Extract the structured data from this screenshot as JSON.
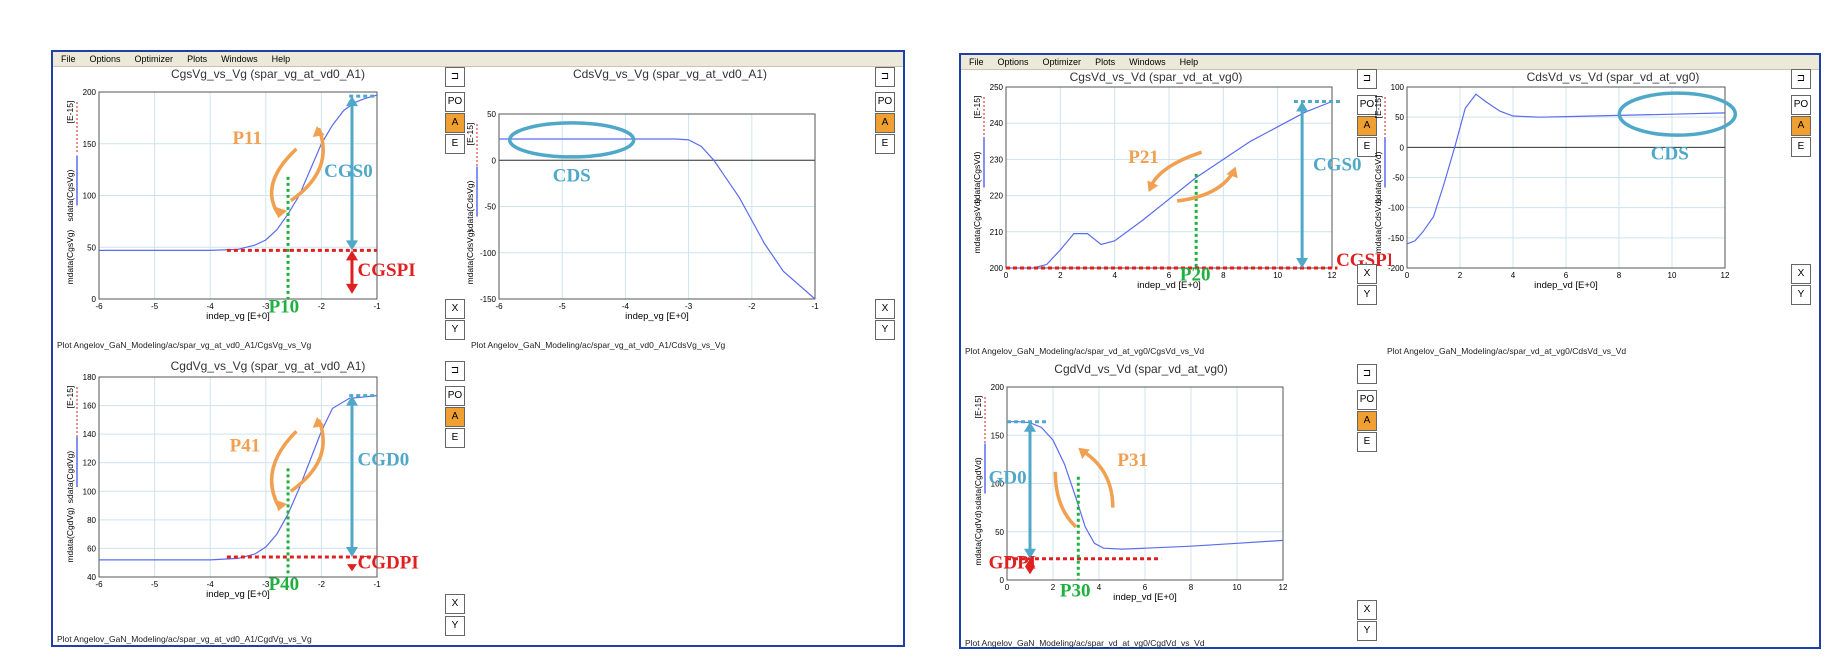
{
  "menu": [
    "File",
    "Options",
    "Optimizer",
    "Plots",
    "Windows",
    "Help"
  ],
  "buttons": {
    "po": "PO",
    "a": "A",
    "e": "E",
    "x": "X",
    "y": "Y"
  },
  "ylabels": {
    "cgsvg": [
      "mdata(CgsVg)",
      "sdata(CgsVg)",
      "[E-15]"
    ],
    "cdsvg": [
      "mdata(CdsVg)",
      "sdata(CdsVg)",
      "[E-15]"
    ],
    "cgdvg": [
      "mdata(CgdVg)",
      "sdata(CgdVg)",
      "[E-15]"
    ],
    "cgsvd": [
      "mdata(CgsVd)",
      "sdata(CgsVd)",
      "[E-15]"
    ],
    "cdsvd": [
      "mdata(CdsVd)",
      "sdata(CdsVd)",
      "[E-15]"
    ],
    "cgdvd": [
      "mdata(CgdVd)",
      "sdata(CgdVd)",
      "[E-15]"
    ]
  },
  "colors": {
    "curve": "#5a6cf0",
    "annot_orange": "#f0a050",
    "annot_blue": "#50a8c8",
    "annot_red": "#e02020",
    "annot_green": "#20b040",
    "frame": "#2040a8"
  },
  "chart_data": [
    {
      "id": "cgsvg",
      "type": "line",
      "title": "CgsVg_vs_Vg (spar_vg_at_vd0_A1)",
      "xlabel": "indep_vg  [E+0]",
      "footer": "Plot Angelov_GaN_Modeling/ac/spar_vg_at_vd0_A1/CgsVg_vs_Vg",
      "xlim": [
        -6,
        -1
      ],
      "ylim": [
        0,
        200
      ],
      "xticks": [
        -6,
        -5,
        -4,
        -3,
        -2,
        -1
      ],
      "yticks": [
        0,
        50,
        100,
        150,
        200
      ],
      "grid": true,
      "x": [
        -6,
        -5,
        -4,
        -3.5,
        -3.2,
        -3.0,
        -2.8,
        -2.6,
        -2.4,
        -2.2,
        -2.0,
        -1.8,
        -1.6,
        -1.4,
        -1.2,
        -1.0
      ],
      "y": [
        47,
        47,
        47,
        48,
        52,
        57,
        67,
        82,
        100,
        125,
        150,
        168,
        182,
        190,
        194,
        197
      ],
      "annotations": [
        "P11",
        "CGS0",
        "CGSPI",
        "P10"
      ]
    },
    {
      "id": "cdsvg",
      "type": "line",
      "title": "CdsVg_vs_Vg (spar_vg_at_vd0_A1)",
      "xlabel": "indep_vg  [E+0]",
      "footer": "Plot Angelov_GaN_Modeling/ac/spar_vg_at_vd0_A1/CdsVg_vs_Vg",
      "xlim": [
        -6,
        -1
      ],
      "ylim": [
        -150,
        50
      ],
      "xticks": [
        -6,
        -5,
        -4,
        -3,
        -2,
        -1
      ],
      "yticks": [
        -150,
        -100,
        -50,
        0,
        50
      ],
      "grid": true,
      "x": [
        -6,
        -5,
        -4,
        -3.2,
        -3.0,
        -2.8,
        -2.6,
        -2.4,
        -2.2,
        -2.0,
        -1.8,
        -1.5,
        -1.0
      ],
      "y": [
        23,
        23,
        23,
        23,
        22,
        15,
        0,
        -20,
        -40,
        -65,
        -90,
        -120,
        -150
      ],
      "annotations": [
        "CDS"
      ]
    },
    {
      "id": "cgdvg",
      "type": "line",
      "title": "CgdVg_vs_Vg (spar_vg_at_vd0_A1)",
      "xlabel": "indep_vg  [E+0]",
      "footer": "Plot Angelov_GaN_Modeling/ac/spar_vg_at_vd0_A1/CgdVg_vs_Vg",
      "xlim": [
        -6,
        -1
      ],
      "ylim": [
        40,
        180
      ],
      "xticks": [
        -6,
        -5,
        -4,
        -3,
        -2,
        -1
      ],
      "yticks": [
        40,
        60,
        80,
        100,
        120,
        140,
        160,
        180
      ],
      "grid": true,
      "x": [
        -6,
        -5,
        -4,
        -3.5,
        -3.2,
        -3.0,
        -2.8,
        -2.6,
        -2.4,
        -2.2,
        -2.0,
        -1.8,
        -1.5,
        -1.0
      ],
      "y": [
        52,
        52,
        52,
        53,
        56,
        61,
        70,
        84,
        102,
        122,
        142,
        158,
        165,
        167
      ],
      "annotations": [
        "P41",
        "CGD0",
        "CGDPI",
        "P40"
      ]
    },
    {
      "id": "cgsvd",
      "type": "line",
      "title": "CgsVd_vs_Vd (spar_vd_at_vg0)",
      "xlabel": "indep_vd  [E+0]",
      "footer": "Plot Angelov_GaN_Modeling/ac/spar_vd_at_vg0/CgsVd_vs_Vd",
      "xlim": [
        0,
        12
      ],
      "ylim": [
        200,
        250
      ],
      "xticks": [
        0,
        2,
        4,
        6,
        8,
        10,
        12
      ],
      "yticks": [
        200,
        210,
        220,
        230,
        240,
        250
      ],
      "grid": true,
      "x": [
        0,
        1,
        1.5,
        2,
        2.5,
        3,
        3.5,
        4,
        5,
        6,
        7,
        8,
        9,
        10,
        11,
        12
      ],
      "y": [
        200,
        200,
        201,
        205,
        209.5,
        209.5,
        206.5,
        207.5,
        213,
        219,
        225,
        230,
        235,
        239,
        243,
        246
      ],
      "annotations": [
        "P21",
        "CGS0",
        "CGSPI",
        "P20"
      ]
    },
    {
      "id": "cdsvd",
      "type": "line",
      "title": "CdsVd_vs_Vd (spar_vd_at_vg0)",
      "xlabel": "indep_vd  [E+0]",
      "footer": "Plot Angelov_GaN_Modeling/ac/spar_vd_at_vg0/CdsVd_vs_Vd",
      "xlim": [
        0,
        12
      ],
      "ylim": [
        -200,
        100
      ],
      "xticks": [
        0,
        2,
        4,
        6,
        8,
        10,
        12
      ],
      "yticks": [
        -200,
        -150,
        -100,
        -50,
        0,
        50,
        100
      ],
      "grid": true,
      "x": [
        0,
        0.3,
        0.6,
        1.0,
        1.4,
        1.8,
        2.2,
        2.6,
        3,
        3.5,
        4,
        5,
        6,
        8,
        10,
        12
      ],
      "y": [
        -160,
        -155,
        -140,
        -115,
        -60,
        0,
        65,
        88,
        75,
        60,
        52,
        50,
        51,
        53,
        55,
        57
      ],
      "annotations": [
        "CDS"
      ]
    },
    {
      "id": "cgdvd",
      "type": "line",
      "title": "CgdVd_vs_Vd (spar_vd_at_vg0)",
      "xlabel": "indep_vd  [E+0]",
      "footer": "Plot Angelov_GaN_Modeling/ac/spar_vd_at_vg0/CgdVd_vs_Vd",
      "xlim": [
        0,
        12
      ],
      "ylim": [
        0,
        200
      ],
      "xticks": [
        0,
        2,
        4,
        6,
        8,
        10,
        12
      ],
      "yticks": [
        0,
        50,
        100,
        150,
        200
      ],
      "grid": true,
      "x": [
        0,
        0.5,
        1.0,
        1.5,
        2.0,
        2.5,
        3.0,
        3.4,
        3.8,
        4.2,
        5,
        6,
        8,
        10,
        12
      ],
      "y": [
        164,
        164,
        163,
        158,
        145,
        120,
        85,
        55,
        38,
        33,
        32,
        33,
        35,
        38,
        41
      ],
      "annotations": [
        "P31",
        "GD0",
        "GDPI",
        "P30"
      ]
    }
  ]
}
